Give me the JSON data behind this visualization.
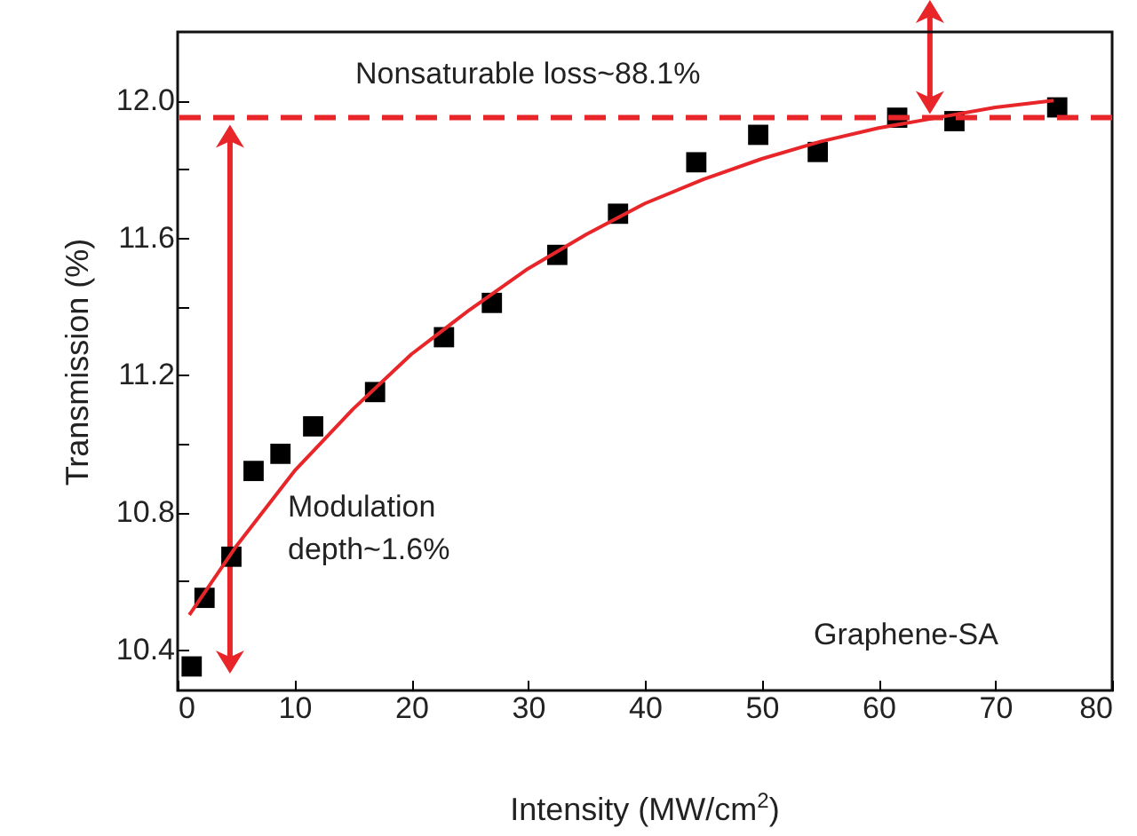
{
  "chart_data": {
    "type": "scatter",
    "xlabel": "Intensity (MW/cm$^{2}$)",
    "ylabel": "Transmission (%)",
    "xlim": [
      0,
      80
    ],
    "ylim": [
      10.28,
      12.2
    ],
    "xticks": [
      0,
      10,
      20,
      30,
      40,
      50,
      60,
      70,
      80
    ],
    "yticks": [
      10.4,
      {
        "value": 10.6,
        "label": null
      },
      10.8,
      {
        "value": 11.0,
        "label": null
      },
      11.2,
      {
        "value": 11.4,
        "label": null
      },
      11.6,
      {
        "value": 11.8,
        "label": null
      },
      {
        "value": 12,
        "label": "12.0"
      }
    ],
    "grid": false,
    "marker": "square",
    "x": [
      1.2,
      2.3,
      4.6,
      6.5,
      8.8,
      11.6,
      16.9,
      22.8,
      26.9,
      32.5,
      37.7,
      44.4,
      49.7,
      54.8,
      61.6,
      66.5,
      75.3
    ],
    "series": [
      {
        "color": "#000000",
        "values": [
          10.35,
          10.55,
          10.67,
          10.92,
          10.97,
          11.05,
          11.15,
          11.31,
          11.41,
          11.55,
          11.67,
          11.82,
          11.9,
          11.85,
          11.95,
          11.94,
          11.98
        ]
      },
      {
        "type": "line",
        "color": "#e8262a",
        "line_style": "solid",
        "marker": "none",
        "x": [
          1,
          5,
          10,
          15,
          20,
          25,
          30,
          35,
          40,
          45,
          50,
          55,
          60,
          65,
          70,
          75
        ],
        "values": [
          10.5,
          10.7,
          10.92,
          11.1,
          11.26,
          11.39,
          11.51,
          11.61,
          11.7,
          11.77,
          11.83,
          11.88,
          11.92,
          11.95,
          11.98,
          12.0
        ]
      }
    ],
    "ref_lines": [
      {
        "axis": "y",
        "value": 11.95,
        "color": "#e8262a",
        "line_style": "dashed"
      }
    ],
    "annotations": [
      "Nonsaturable loss~88.1%",
      "Modulation depth~1.6%",
      "Graphene-SA"
    ]
  }
}
